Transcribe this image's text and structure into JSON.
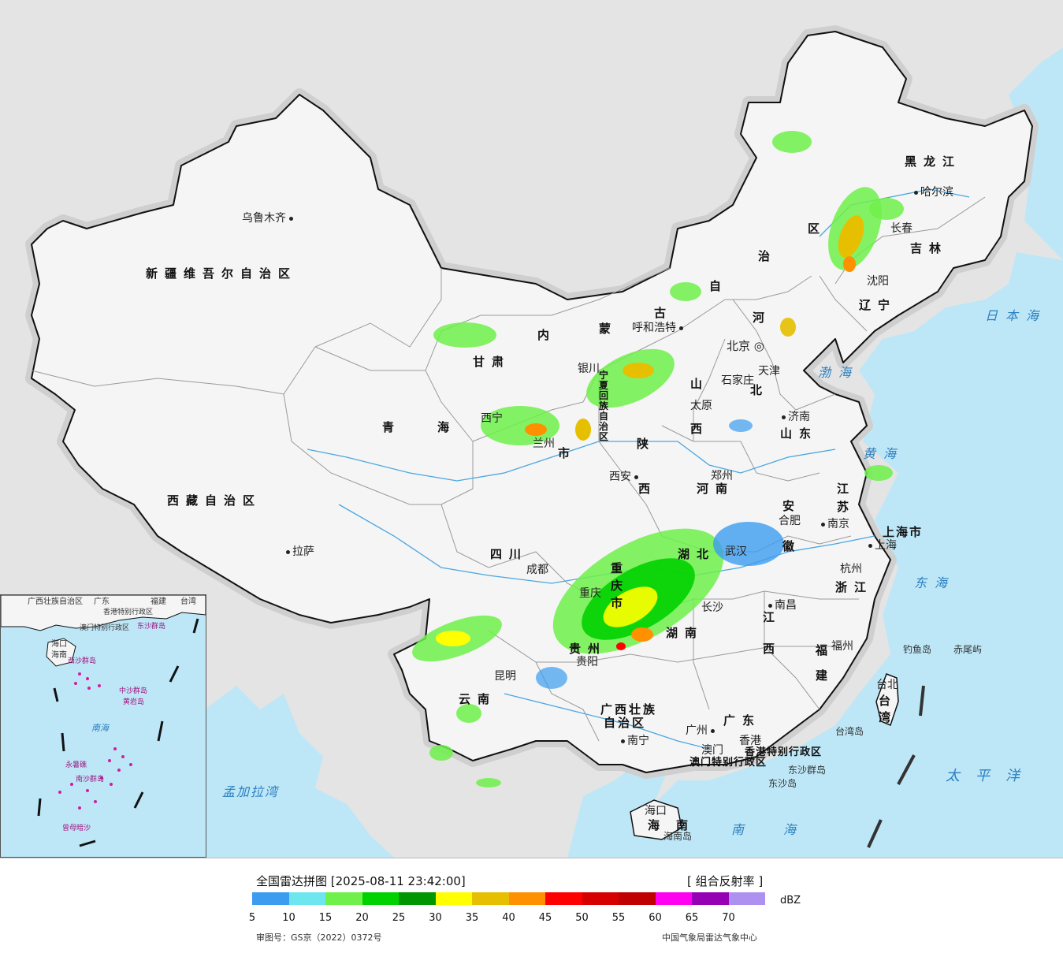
{
  "map": {
    "colors": {
      "sea": "#bde7f7",
      "land_other": "#e4e4e4",
      "china": "#f5f5f5",
      "border": "#111111",
      "province_line": "#9a9a9a",
      "river": "#4aa6e0"
    },
    "cities": [
      {
        "id": "urumqi",
        "name": "乌鲁木齐"
      },
      {
        "id": "lhasa",
        "name": "拉萨"
      },
      {
        "id": "xining",
        "name": "西宁"
      },
      {
        "id": "lanzhou",
        "name": "兰州"
      },
      {
        "id": "yinchuan",
        "name": "银川"
      },
      {
        "id": "hohhot",
        "name": "呼和浩特"
      },
      {
        "id": "beijing",
        "name": "北京"
      },
      {
        "id": "tianjin",
        "name": "天津"
      },
      {
        "id": "shijiazhuang",
        "name": "石家庄"
      },
      {
        "id": "taiyuan",
        "name": "太原"
      },
      {
        "id": "jinan",
        "name": "济南"
      },
      {
        "id": "zhengzhou",
        "name": "郑州"
      },
      {
        "id": "xian",
        "name": "西安"
      },
      {
        "id": "chengdu",
        "name": "成都"
      },
      {
        "id": "chongqing",
        "name": "重庆"
      },
      {
        "id": "wuhan",
        "name": "武汉"
      },
      {
        "id": "hefei",
        "name": "合肥"
      },
      {
        "id": "nanjing",
        "name": "南京"
      },
      {
        "id": "shanghai",
        "name": "上海"
      },
      {
        "id": "hangzhou",
        "name": "杭州"
      },
      {
        "id": "nanchang",
        "name": "南昌"
      },
      {
        "id": "changsha",
        "name": "长沙"
      },
      {
        "id": "guiyang",
        "name": "贵阳"
      },
      {
        "id": "kunming",
        "name": "昆明"
      },
      {
        "id": "nanning",
        "name": "南宁"
      },
      {
        "id": "guangzhou",
        "name": "广州"
      },
      {
        "id": "hongkong",
        "name": "香港"
      },
      {
        "id": "macau",
        "name": "澳门"
      },
      {
        "id": "fuzhou",
        "name": "福州"
      },
      {
        "id": "taibei",
        "name": "台北"
      },
      {
        "id": "haikou",
        "name": "海口"
      },
      {
        "id": "shenyang",
        "name": "沈阳"
      },
      {
        "id": "changchun",
        "name": "长春"
      },
      {
        "id": "harbin",
        "name": "哈尔滨"
      }
    ],
    "provinces": [
      {
        "id": "xinjiang",
        "name": "新疆维吾尔自治区"
      },
      {
        "id": "xizang",
        "name": "西藏自治区"
      },
      {
        "id": "qinghai_a",
        "name": "青"
      },
      {
        "id": "qinghai_b",
        "name": "海"
      },
      {
        "id": "gansu",
        "name": "甘肃"
      },
      {
        "id": "neimenggu_1",
        "name": "内"
      },
      {
        "id": "neimenggu_2",
        "name": "蒙"
      },
      {
        "id": "neimenggu_3",
        "name": "古"
      },
      {
        "id": "neimenggu_4",
        "name": "自"
      },
      {
        "id": "neimenggu_5",
        "name": "治"
      },
      {
        "id": "neimenggu_6",
        "name": "区"
      },
      {
        "id": "heilongjiang",
        "name": "黑龙江"
      },
      {
        "id": "jilin",
        "name": "吉林"
      },
      {
        "id": "liaoning",
        "name": "辽宁"
      },
      {
        "id": "hebei_1",
        "name": "河"
      },
      {
        "id": "hebei_2",
        "name": "北"
      },
      {
        "id": "shanxi_1",
        "name": "山"
      },
      {
        "id": "shanxi_2",
        "name": "西"
      },
      {
        "id": "shandong",
        "name": "山东"
      },
      {
        "id": "shaanxi_1",
        "name": "陕"
      },
      {
        "id": "shaanxi_2",
        "name": "西"
      },
      {
        "id": "henan",
        "name": "河南"
      },
      {
        "id": "ningxia",
        "name": "宁夏回族自治区"
      },
      {
        "id": "sichuan",
        "name": "四川"
      },
      {
        "id": "chongqing_prov",
        "name": "重庆市"
      },
      {
        "id": "hubei",
        "name": "湖北"
      },
      {
        "id": "anhui_1",
        "name": "安"
      },
      {
        "id": "anhui_2",
        "name": "徽"
      },
      {
        "id": "jiangsu_1",
        "name": "江"
      },
      {
        "id": "jiangsu_2",
        "name": "苏"
      },
      {
        "id": "shanghai_prov",
        "name": "上海市"
      },
      {
        "id": "zhejiang",
        "name": "浙江"
      },
      {
        "id": "jiangxi_1",
        "name": "江"
      },
      {
        "id": "jiangxi_2",
        "name": "西"
      },
      {
        "id": "hunan",
        "name": "湖南"
      },
      {
        "id": "guizhou",
        "name": "贵州"
      },
      {
        "id": "yunnan",
        "name": "云南"
      },
      {
        "id": "guangxi_1",
        "name": "广西壮族"
      },
      {
        "id": "guangxi_2",
        "name": "自治区"
      },
      {
        "id": "guangdong",
        "name": "广东"
      },
      {
        "id": "fujian_1",
        "name": "福"
      },
      {
        "id": "fujian_2",
        "name": "建"
      },
      {
        "id": "taiwan_1",
        "name": "台"
      },
      {
        "id": "taiwan_2",
        "name": "湾"
      },
      {
        "id": "hainan_1",
        "name": "海"
      },
      {
        "id": "hainan_2",
        "name": "南"
      },
      {
        "id": "gansu_city",
        "name": "甘"
      },
      {
        "id": "lanzhou_shi",
        "name": "市"
      },
      {
        "id": "hk_sar",
        "name": "香港特别行政区"
      },
      {
        "id": "macau_sar",
        "name": "澳门特别行政区"
      }
    ],
    "seas": [
      {
        "id": "bohai",
        "name": "渤海"
      },
      {
        "id": "huanghai",
        "name": "黄海"
      },
      {
        "id": "donghai",
        "name": "东海"
      },
      {
        "id": "riben",
        "name": "日本海"
      },
      {
        "id": "nanhai",
        "name": "南海"
      },
      {
        "id": "taipingyang",
        "name": "太平洋"
      },
      {
        "id": "mengjiala",
        "name": "孟加拉湾"
      }
    ],
    "islands": [
      {
        "id": "diaoyu",
        "name": "钓鱼岛"
      },
      {
        "id": "chiwei",
        "name": "赤尾屿"
      },
      {
        "id": "taiwan_island",
        "name": "台湾岛"
      },
      {
        "id": "dongsha_group",
        "name": "东沙群岛"
      },
      {
        "id": "dongsha",
        "name": "东沙岛"
      },
      {
        "id": "hainan_island",
        "name": "海南岛"
      }
    ],
    "inset": {
      "labels": [
        "广西壮族自治区",
        "广东",
        "福建",
        "台湾",
        "香港特别行政区",
        "澳门特别行政区",
        "海口",
        "海南",
        "东沙群岛",
        "西沙群岛",
        "中沙群岛",
        "南海",
        "南沙群岛",
        "曾母暗沙",
        "黄岩岛",
        "永暑礁"
      ]
    }
  },
  "legend": {
    "title": "全国雷达拼图 [2025-08-11 23:42:00]",
    "product": "[ 组合反射率 ]",
    "unit": "dBZ",
    "ticks": [
      "5",
      "10",
      "15",
      "20",
      "25",
      "30",
      "35",
      "40",
      "45",
      "50",
      "55",
      "60",
      "65",
      "70"
    ],
    "colors": [
      "#3c9cf0",
      "#6de6f0",
      "#6ff04a",
      "#00d200",
      "#009600",
      "#ffff00",
      "#e6c000",
      "#ff9000",
      "#ff0000",
      "#d60000",
      "#c00000",
      "#ff00f0",
      "#9600b4",
      "#ad90f0"
    ],
    "approval": "审图号：GS京（2022）0372号",
    "agency": "中国气象局雷达气象中心"
  }
}
